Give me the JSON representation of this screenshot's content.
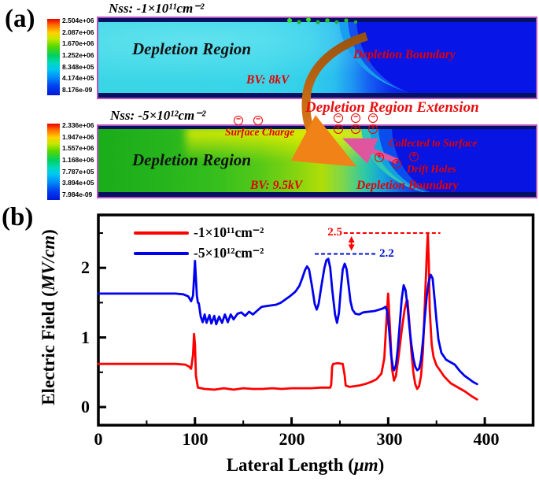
{
  "colors": {
    "series_red": "#ff0000",
    "series_blue": "#0000ee",
    "annotation_red": "#ff0000",
    "annotation_blue": "#0011cc",
    "note_red": "#e60000",
    "heatmap_cyan": "#38d5e8",
    "heatmap_blue": "#0513e2",
    "heatmap_green": "#2ab42a",
    "heatmap_yellow": "#d8e400",
    "arrow_orange": "#f08218",
    "arrow_brown": "#98520f",
    "arrow_pink": "#e0569e",
    "map_border_magenta": "#b553c0"
  },
  "panel_a": {
    "label": "(a)",
    "extension": "Depletion Region Extension",
    "top_map": {
      "title": "Nss: -1×10¹¹cm⁻²",
      "colorbar_labels": [
        "2.504e+06",
        "2.087e+06",
        "1.670e+06",
        "1.252e+06",
        "8.348e+05",
        "4.174e+05",
        "8.176e-09"
      ],
      "region": "Depletion Region",
      "bv": "BV: 8kV",
      "boundary": "Depletion Boundary"
    },
    "bottom_map": {
      "title": "Nss: -5×10¹²cm⁻²",
      "colorbar_labels": [
        "2.336e+06",
        "1.947e+06",
        "1.557e+06",
        "1.168e+06",
        "7.787e+05",
        "3.894e+05",
        "7.984e-09"
      ],
      "region": "Depletion Region",
      "bv": "BV: 9.5kV",
      "boundary": "Depletion Boundary",
      "surface_charge": "Surface Charge",
      "collected": "Collected to Surface",
      "drift": "Drift Holes"
    },
    "symbols": {
      "minus": "−",
      "plus": "+"
    }
  },
  "panel_b": {
    "label": "(b)",
    "ylabel_pre": "Electric Field (",
    "ylabel_it": "MV/cm",
    "ylabel_post": ")",
    "xlabel_pre": "Lateral Length (",
    "xlabel_it": "μm",
    "xlabel_post": ")",
    "yticks": [
      "0",
      "1",
      "2"
    ],
    "xticks": [
      "0",
      "100",
      "200",
      "300",
      "400"
    ],
    "legend": [
      {
        "label": "-1×10¹¹cm⁻²",
        "color": "#ff0000"
      },
      {
        "label": "-5×10¹²cm⁻²",
        "color": "#0000ee"
      }
    ],
    "ann_25": "2.5",
    "ann_22": "2.2"
  },
  "chart_data": {
    "type": "line",
    "title": "",
    "xlabel": "Lateral Length (μm)",
    "ylabel": "Electric Field (MV/cm)",
    "xlim": [
      0,
      450
    ],
    "ylim": [
      -0.26,
      2.76
    ],
    "xticks": [
      0,
      100,
      200,
      300,
      400
    ],
    "yticks": [
      0,
      1,
      2
    ],
    "x_minor_step": 50,
    "y_minor_step": 0.5,
    "grid": false,
    "legend_position": "upper-left-inside",
    "annotations": [
      {
        "text": "2.5",
        "y": 2.5,
        "x1": 254,
        "x2": 354,
        "color": "#ff0000",
        "style": "dashed"
      },
      {
        "text": "2.2",
        "y": 2.2,
        "x1": 224,
        "x2": 287,
        "color": "#0011cc",
        "style": "dashed"
      },
      {
        "type": "double-arrow",
        "x": 262,
        "y1": 2.2,
        "y2": 2.5,
        "color": "#ff0000"
      }
    ],
    "series": [
      {
        "name": "-1×10¹¹cm⁻²",
        "color": "#ff0000",
        "points": [
          [
            0,
            0.62
          ],
          [
            40,
            0.62
          ],
          [
            80,
            0.62
          ],
          [
            90,
            0.61
          ],
          [
            94,
            0.58
          ],
          [
            96,
            0.55
          ],
          [
            98,
            0.75
          ],
          [
            99,
            1.05
          ],
          [
            100,
            0.9
          ],
          [
            101,
            0.45
          ],
          [
            103,
            0.28
          ],
          [
            110,
            0.26
          ],
          [
            120,
            0.25
          ],
          [
            130,
            0.27
          ],
          [
            140,
            0.25
          ],
          [
            150,
            0.27
          ],
          [
            160,
            0.26
          ],
          [
            170,
            0.26
          ],
          [
            180,
            0.27
          ],
          [
            190,
            0.26
          ],
          [
            200,
            0.27
          ],
          [
            210,
            0.27
          ],
          [
            220,
            0.27
          ],
          [
            230,
            0.28
          ],
          [
            240,
            0.28
          ],
          [
            241,
            0.32
          ],
          [
            242,
            0.58
          ],
          [
            243,
            0.62
          ],
          [
            248,
            0.63
          ],
          [
            253,
            0.62
          ],
          [
            255,
            0.45
          ],
          [
            256,
            0.31
          ],
          [
            260,
            0.29
          ],
          [
            265,
            0.3
          ],
          [
            270,
            0.31
          ],
          [
            276,
            0.33
          ],
          [
            282,
            0.36
          ],
          [
            288,
            0.4
          ],
          [
            293,
            0.48
          ],
          [
            296,
            0.7
          ],
          [
            298,
            1.2
          ],
          [
            300,
            1.63
          ],
          [
            302,
            1.1
          ],
          [
            304,
            0.55
          ],
          [
            306,
            0.38
          ],
          [
            308,
            0.45
          ],
          [
            311,
            0.75
          ],
          [
            314,
            1.1
          ],
          [
            317,
            1.4
          ],
          [
            319,
            1.52
          ],
          [
            320,
            1.53
          ],
          [
            322,
            1.2
          ],
          [
            324,
            0.8
          ],
          [
            326,
            0.5
          ],
          [
            328,
            0.33
          ],
          [
            330,
            0.26
          ],
          [
            332,
            0.3
          ],
          [
            334,
            0.45
          ],
          [
            336,
            0.8
          ],
          [
            338,
            1.5
          ],
          [
            340,
            2.2
          ],
          [
            341,
            2.5
          ],
          [
            342,
            2.1
          ],
          [
            343,
            1.4
          ],
          [
            345,
            0.9
          ],
          [
            347,
            0.72
          ],
          [
            350,
            0.6
          ],
          [
            354,
            0.52
          ],
          [
            358,
            0.44
          ],
          [
            362,
            0.38
          ],
          [
            365,
            0.34
          ],
          [
            370,
            0.3
          ],
          [
            375,
            0.26
          ],
          [
            380,
            0.22
          ],
          [
            386,
            0.16
          ],
          [
            392,
            0.11
          ]
        ]
      },
      {
        "name": "-5×10¹²cm⁻²",
        "color": "#0000ee",
        "points": [
          [
            0,
            1.63
          ],
          [
            40,
            1.63
          ],
          [
            80,
            1.63
          ],
          [
            88,
            1.62
          ],
          [
            93,
            1.59
          ],
          [
            96,
            1.52
          ],
          [
            98,
            1.6
          ],
          [
            99,
            1.85
          ],
          [
            100,
            2.1
          ],
          [
            101,
            1.85
          ],
          [
            102,
            1.6
          ],
          [
            103,
            1.5
          ],
          [
            104,
            1.49
          ],
          [
            106,
            1.3
          ],
          [
            108,
            1.22
          ],
          [
            110,
            1.33
          ],
          [
            112,
            1.21
          ],
          [
            115,
            1.32
          ],
          [
            117,
            1.2
          ],
          [
            120,
            1.31
          ],
          [
            122,
            1.19
          ],
          [
            125,
            1.3
          ],
          [
            128,
            1.21
          ],
          [
            131,
            1.33
          ],
          [
            134,
            1.22
          ],
          [
            137,
            1.33
          ],
          [
            140,
            1.26
          ],
          [
            144,
            1.34
          ],
          [
            148,
            1.36
          ],
          [
            152,
            1.31
          ],
          [
            156,
            1.37
          ],
          [
            160,
            1.33
          ],
          [
            164,
            1.38
          ],
          [
            169,
            1.44
          ],
          [
            174,
            1.45
          ],
          [
            179,
            1.46
          ],
          [
            184,
            1.47
          ],
          [
            189,
            1.5
          ],
          [
            194,
            1.55
          ],
          [
            199,
            1.6
          ],
          [
            204,
            1.66
          ],
          [
            208,
            1.74
          ],
          [
            211,
            1.85
          ],
          [
            214,
            1.97
          ],
          [
            216,
            2.02
          ],
          [
            218,
            1.98
          ],
          [
            221,
            1.75
          ],
          [
            224,
            1.48
          ],
          [
            226,
            1.4
          ],
          [
            228,
            1.48
          ],
          [
            231,
            1.75
          ],
          [
            234,
            2.0
          ],
          [
            236,
            2.11
          ],
          [
            238,
            2.13
          ],
          [
            240,
            2.0
          ],
          [
            242,
            1.7
          ],
          [
            245,
            1.33
          ],
          [
            247,
            1.21
          ],
          [
            249,
            1.35
          ],
          [
            251,
            1.7
          ],
          [
            253,
            1.98
          ],
          [
            255,
            2.06
          ],
          [
            257,
            1.98
          ],
          [
            259,
            1.75
          ],
          [
            261,
            1.52
          ],
          [
            263,
            1.4
          ],
          [
            266,
            1.34
          ],
          [
            270,
            1.33
          ],
          [
            274,
            1.36
          ],
          [
            280,
            1.37
          ],
          [
            286,
            1.38
          ],
          [
            291,
            1.4
          ],
          [
            295,
            1.42
          ],
          [
            297,
            1.44
          ],
          [
            299,
            1.38
          ],
          [
            301,
            1.1
          ],
          [
            303,
            0.75
          ],
          [
            305,
            0.56
          ],
          [
            306,
            0.53
          ],
          [
            308,
            0.6
          ],
          [
            310,
            0.85
          ],
          [
            312,
            1.2
          ],
          [
            314,
            1.55
          ],
          [
            316,
            1.75
          ],
          [
            318,
            1.68
          ],
          [
            320,
            1.45
          ],
          [
            322,
            1.15
          ],
          [
            324,
            0.9
          ],
          [
            326,
            0.7
          ],
          [
            328,
            0.58
          ],
          [
            330,
            0.53
          ],
          [
            332,
            0.55
          ],
          [
            334,
            0.68
          ],
          [
            336,
            0.95
          ],
          [
            338,
            1.3
          ],
          [
            340,
            1.6
          ],
          [
            342,
            1.8
          ],
          [
            344,
            1.9
          ],
          [
            346,
            1.85
          ],
          [
            348,
            1.55
          ],
          [
            350,
            1.25
          ],
          [
            352,
            0.97
          ],
          [
            355,
            0.78
          ],
          [
            360,
            0.68
          ],
          [
            365,
            0.64
          ],
          [
            369,
            0.61
          ],
          [
            374,
            0.52
          ],
          [
            379,
            0.45
          ],
          [
            384,
            0.4
          ],
          [
            388,
            0.36
          ],
          [
            392,
            0.33
          ]
        ]
      }
    ]
  }
}
